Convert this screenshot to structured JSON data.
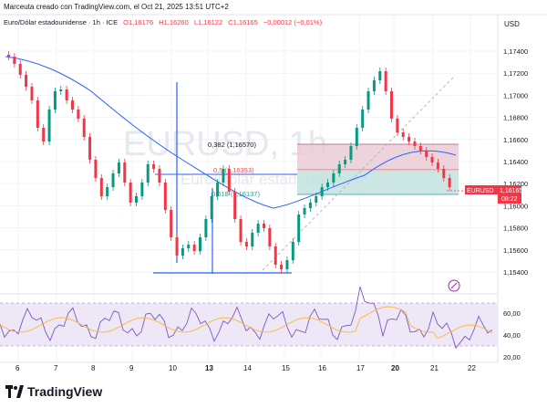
{
  "caption": "Marceuta creado con TradingView.com, el Oct 21, 2025 13:51 UTC+2",
  "legend": {
    "symbol": "Euro/Dólar estadounidense · 1h · ICE",
    "open": "O1,16176",
    "high": "H1,16260",
    "low": "L1,16122",
    "close": "C1,16165",
    "change": "−0,00012 (−0,01%)"
  },
  "currency": "USD",
  "watermark": {
    "ticker": "EURUSD, 1h",
    "name": "Euro/Dólar estadounidense"
  },
  "fib_labels": [
    "0,382 (1,16570)",
    "0,5 (1,16353)",
    "0,618 (1,16137)"
  ],
  "price_axis": [
    "1,17400",
    "1,17200",
    "1,17000",
    "1,16800",
    "1,16600",
    "1,16400",
    "1,16200",
    "1,16000",
    "1,15800",
    "1,15600",
    "1,15400"
  ],
  "price_tag": {
    "symbol": "EURUSD",
    "price": "1,16165",
    "countdown": "08:22"
  },
  "time_axis": [
    "6",
    "7",
    "8",
    "9",
    "10",
    "13",
    "14",
    "15",
    "16",
    "17",
    "20",
    "21",
    "22"
  ],
  "rsi_axis": [
    "60,00",
    "40,00",
    "20,00"
  ],
  "brand": "TradingView",
  "colors": {
    "up": "#089981",
    "down": "#f23645",
    "ma": "#2962ff",
    "rsi": "#7e57c2",
    "rsi_ma": "#f7b93a"
  }
}
